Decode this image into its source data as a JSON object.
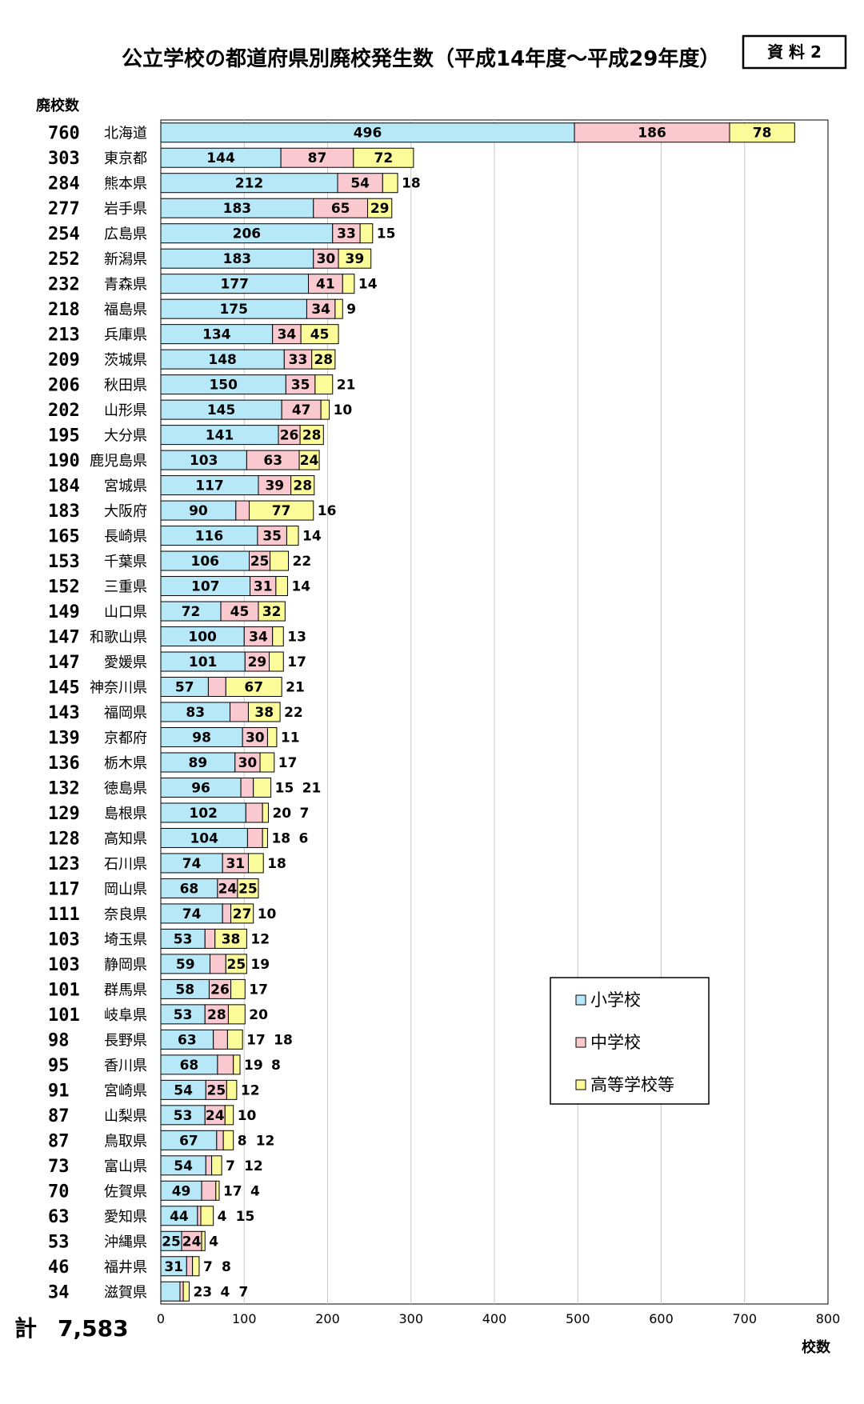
{
  "title": "公立学校の都道府県別廃校発生数（平成14年度～平成29年度）",
  "badge": "資 料 2",
  "y_axis_heading": "廃校数",
  "x_axis_heading": "校数",
  "grand_total": {
    "label": "計",
    "value": "7,583"
  },
  "colors": {
    "小学校": "#b7e8f8",
    "中学校": "#f9c9cf",
    "高等学校等": "#fbfb9a"
  },
  "chart_data": {
    "type": "bar",
    "orientation": "horizontal",
    "stacked": true,
    "title": "公立学校の都道府県別廃校発生数（平成14年度～平成29年度）",
    "xlabel": "校数",
    "ylabel": "廃校数",
    "xlim": [
      0,
      800
    ],
    "xticks": [
      0,
      100,
      200,
      300,
      400,
      500,
      600,
      700,
      800
    ],
    "grid": "vertical",
    "legend": "bottom-right",
    "categories": [
      "北海道",
      "東京都",
      "熊本県",
      "岩手県",
      "広島県",
      "新潟県",
      "青森県",
      "福島県",
      "兵庫県",
      "茨城県",
      "秋田県",
      "山形県",
      "大分県",
      "鹿児島県",
      "宮城県",
      "大阪府",
      "長崎県",
      "千葉県",
      "三重県",
      "山口県",
      "和歌山県",
      "愛媛県",
      "神奈川県",
      "福岡県",
      "京都府",
      "栃木県",
      "徳島県",
      "島根県",
      "高知県",
      "石川県",
      "岡山県",
      "奈良県",
      "埼玉県",
      "静岡県",
      "群馬県",
      "岐阜県",
      "長野県",
      "香川県",
      "宮崎県",
      "山梨県",
      "鳥取県",
      "富山県",
      "佐賀県",
      "愛知県",
      "沖縄県",
      "福井県",
      "滋賀県"
    ],
    "totals": [
      760,
      303,
      284,
      277,
      254,
      252,
      232,
      218,
      213,
      209,
      206,
      202,
      195,
      190,
      184,
      183,
      165,
      153,
      152,
      149,
      147,
      147,
      145,
      143,
      139,
      136,
      132,
      129,
      128,
      123,
      117,
      111,
      103,
      103,
      101,
      101,
      98,
      95,
      91,
      87,
      87,
      73,
      70,
      63,
      53,
      46,
      34
    ],
    "series": [
      {
        "name": "小学校",
        "values": [
          496,
          144,
          212,
          183,
          206,
          183,
          177,
          175,
          134,
          148,
          150,
          145,
          141,
          103,
          117,
          90,
          116,
          106,
          107,
          72,
          100,
          101,
          57,
          83,
          98,
          89,
          96,
          102,
          104,
          74,
          68,
          74,
          53,
          59,
          58,
          53,
          63,
          68,
          54,
          53,
          67,
          54,
          49,
          44,
          25,
          31,
          23
        ]
      },
      {
        "name": "中学校",
        "values": [
          186,
          87,
          54,
          65,
          33,
          30,
          41,
          34,
          34,
          33,
          35,
          47,
          26,
          63,
          39,
          16,
          35,
          25,
          31,
          45,
          34,
          29,
          21,
          22,
          30,
          30,
          15,
          20,
          18,
          31,
          24,
          10,
          12,
          19,
          26,
          28,
          17,
          19,
          25,
          24,
          8,
          7,
          17,
          4,
          24,
          7,
          4
        ]
      },
      {
        "name": "高等学校等",
        "values": [
          78,
          72,
          18,
          29,
          15,
          39,
          14,
          9,
          45,
          28,
          21,
          10,
          28,
          24,
          28,
          77,
          14,
          22,
          14,
          32,
          13,
          17,
          67,
          38,
          11,
          17,
          21,
          7,
          6,
          18,
          25,
          27,
          38,
          25,
          17,
          20,
          18,
          8,
          12,
          10,
          12,
          12,
          4,
          15,
          4,
          8,
          7
        ]
      }
    ],
    "data_labels": [
      [
        "496",
        "186",
        "78"
      ],
      [
        "144",
        "87",
        "72"
      ],
      [
        "212",
        "54",
        "18"
      ],
      [
        "183",
        "65",
        "29"
      ],
      [
        "206",
        "33",
        "15"
      ],
      [
        "183",
        "30",
        "39"
      ],
      [
        "177",
        "41",
        "14"
      ],
      [
        "175",
        "34",
        "9"
      ],
      [
        "134",
        "34",
        "45"
      ],
      [
        "148",
        "33",
        "28"
      ],
      [
        "150",
        "35",
        "21"
      ],
      [
        "145",
        "47",
        "10"
      ],
      [
        "141",
        "26",
        "28"
      ],
      [
        "103",
        "63",
        "24"
      ],
      [
        "117",
        "39",
        "28"
      ],
      [
        "90",
        "16",
        "77"
      ],
      [
        "116",
        "35",
        "14"
      ],
      [
        "106",
        "25",
        "22"
      ],
      [
        "107",
        "31",
        "14"
      ],
      [
        "72",
        "45",
        "32"
      ],
      [
        "100",
        "34",
        "13"
      ],
      [
        "101",
        "29",
        "17"
      ],
      [
        "57",
        "21",
        "67"
      ],
      [
        "83",
        "22",
        "38"
      ],
      [
        "98",
        "30",
        "11"
      ],
      [
        "89",
        "30",
        "17"
      ],
      [
        "96",
        "15",
        "21"
      ],
      [
        "102",
        "20",
        "7"
      ],
      [
        "104",
        "18",
        "6"
      ],
      [
        "74",
        "31",
        "18"
      ],
      [
        "68",
        "24",
        "25"
      ],
      [
        "74",
        "10",
        "27"
      ],
      [
        "53",
        "12",
        "38"
      ],
      [
        "59",
        "19",
        "25"
      ],
      [
        "58",
        "26",
        "17"
      ],
      [
        "53",
        "28",
        "20"
      ],
      [
        "63",
        "17",
        "18"
      ],
      [
        "68",
        "19",
        "8"
      ],
      [
        "54",
        "25",
        "12"
      ],
      [
        "53",
        "24",
        "10"
      ],
      [
        "67",
        "8",
        "12"
      ],
      [
        "54",
        "7",
        "12"
      ],
      [
        "49",
        "17",
        "4"
      ],
      [
        "44",
        "4",
        "15"
      ],
      [
        "25",
        "24",
        "4"
      ],
      [
        "31",
        "7",
        "8"
      ],
      [
        "23",
        "4",
        "7"
      ]
    ]
  }
}
